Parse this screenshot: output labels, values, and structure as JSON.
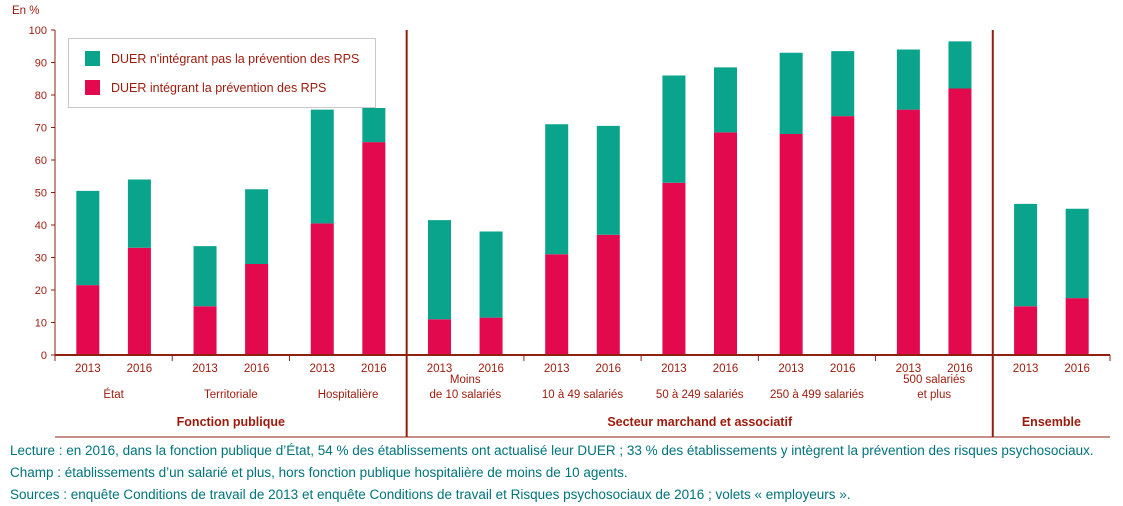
{
  "colors": {
    "bar_integrant": "#e2094e",
    "bar_non_integrant": "#09a48b",
    "axis": "#8e2012",
    "text": "#9c1a0c",
    "note": "#00737b",
    "legend_border": "#c9c9c9"
  },
  "chart_data": {
    "type": "bar",
    "stacked": true,
    "unit_label": "En %",
    "ylim": [
      0,
      100
    ],
    "ytick_step": 10,
    "legend_position": "top-left",
    "grid": false,
    "series": [
      {
        "name": "DUER n'intégrant pas la prévention des RPS",
        "key": "non_integrant",
        "color": "#09a48b"
      },
      {
        "name": "DUER intégrant la prévention des RPS",
        "key": "integrant",
        "color": "#e2094e"
      }
    ],
    "years": [
      "2013",
      "2016"
    ],
    "groups": [
      {
        "label": "Fonction publique",
        "categories": [
          {
            "label": [
              "État"
            ],
            "bars": [
              {
                "year": "2013",
                "integrant": 21.5,
                "non_integrant": 29
              },
              {
                "year": "2016",
                "integrant": 33,
                "non_integrant": 21
              }
            ]
          },
          {
            "label": [
              "Territoriale"
            ],
            "bars": [
              {
                "year": "2013",
                "integrant": 15,
                "non_integrant": 18.5
              },
              {
                "year": "2016",
                "integrant": 28,
                "non_integrant": 23
              }
            ]
          },
          {
            "label": [
              "Hospitalière"
            ],
            "bars": [
              {
                "year": "2013",
                "integrant": 40.5,
                "non_integrant": 35
              },
              {
                "year": "2016",
                "integrant": 65.5,
                "non_integrant": 10.5
              }
            ]
          }
        ]
      },
      {
        "label": "Secteur marchand et associatif",
        "categories": [
          {
            "label": [
              "Moins",
              "de 10 salariés"
            ],
            "bars": [
              {
                "year": "2013",
                "integrant": 11,
                "non_integrant": 30.5
              },
              {
                "year": "2016",
                "integrant": 11.5,
                "non_integrant": 26.5
              }
            ]
          },
          {
            "label": [
              "10 à 49 salariés"
            ],
            "bars": [
              {
                "year": "2013",
                "integrant": 31,
                "non_integrant": 40
              },
              {
                "year": "2016",
                "integrant": 37,
                "non_integrant": 33.5
              }
            ]
          },
          {
            "label": [
              "50 à 249 salariés"
            ],
            "bars": [
              {
                "year": "2013",
                "integrant": 53,
                "non_integrant": 33
              },
              {
                "year": "2016",
                "integrant": 68.5,
                "non_integrant": 20
              }
            ]
          },
          {
            "label": [
              "250 à 499 salariés"
            ],
            "bars": [
              {
                "year": "2013",
                "integrant": 68,
                "non_integrant": 25
              },
              {
                "year": "2016",
                "integrant": 73.5,
                "non_integrant": 20
              }
            ]
          },
          {
            "label": [
              "500 salariés",
              "et plus"
            ],
            "bars": [
              {
                "year": "2013",
                "integrant": 75.5,
                "non_integrant": 18.5
              },
              {
                "year": "2016",
                "integrant": 82,
                "non_integrant": 14.5
              }
            ]
          }
        ]
      },
      {
        "label": "Ensemble",
        "categories": [
          {
            "label": [],
            "bars": [
              {
                "year": "2013",
                "integrant": 15,
                "non_integrant": 31.5
              },
              {
                "year": "2016",
                "integrant": 17.5,
                "non_integrant": 27.5
              }
            ]
          }
        ]
      }
    ]
  },
  "notes": {
    "lecture": "Lecture : en 2016, dans la fonction publique d’État, 54 % des établissements ont actualisé leur DUER ; 33 % des établissements y intègrent la prévention des risques psychosociaux.",
    "champ": "Champ : établissements d’un salarié et plus, hors fonction publique hospitalière de moins de 10 agents.",
    "sources": "Sources : enquête Conditions de travail de 2013 et enquête Conditions de travail et Risques psychosociaux de 2016 ; volets « employeurs »."
  }
}
